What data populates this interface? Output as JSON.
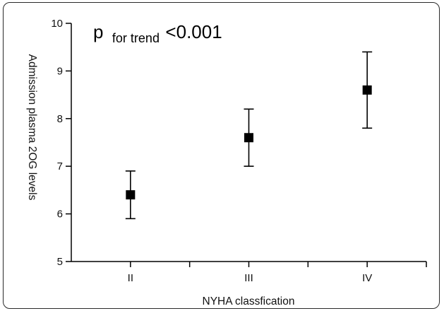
{
  "chart_data": {
    "type": "scatter",
    "title": "",
    "xlabel": "NYHA classfication",
    "ylabel": "Admission plasma 2OG levels",
    "categories": [
      "II",
      "III",
      "IV"
    ],
    "series": [
      {
        "values": [
          6.4,
          7.6,
          8.6
        ],
        "lower": [
          5.9,
          7.0,
          7.8
        ],
        "upper": [
          6.9,
          8.2,
          9.4
        ]
      }
    ],
    "ylim": [
      5,
      10
    ],
    "yticks": [
      "5",
      "6",
      "7",
      "8",
      "9",
      "10"
    ],
    "grid": false,
    "marker": "square",
    "color": "#000000",
    "annotation": {
      "main": "p",
      "sub": "for trend",
      "value": "<0.001"
    }
  }
}
